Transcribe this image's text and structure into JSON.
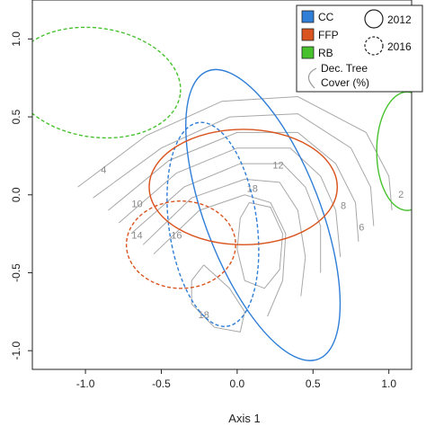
{
  "chart_data": {
    "type": "scatter",
    "title": "",
    "xlabel": "Axis 1",
    "ylabel": "",
    "xlim": [
      -1.35,
      1.15
    ],
    "ylim": [
      -1.12,
      1.25
    ],
    "x_ticks": [
      -1.0,
      -0.5,
      0.0,
      0.5,
      1.0
    ],
    "x_tick_labels": [
      "-1.0",
      "-0.5",
      "0.0",
      "0.5",
      "1.0"
    ],
    "y_ticks": [
      -1.0,
      -0.5,
      0.0,
      0.5,
      1.0
    ],
    "y_tick_labels": [
      "-1.0",
      "-0.5",
      "0.0",
      "0.5",
      "1.0"
    ],
    "grid": false,
    "legend": {
      "placement": "top-right",
      "groups": [
        {
          "label": "CC",
          "color": "#2f7ed8"
        },
        {
          "label": "FFP",
          "color": "#d9541e"
        },
        {
          "label": "RB",
          "color": "#47c22e"
        }
      ],
      "years": [
        {
          "label": "2012",
          "style": "solid"
        },
        {
          "label": "2016",
          "style": "dashed"
        }
      ],
      "contour_line1": "Dec. Tree",
      "contour_line2": "Cover (%)"
    },
    "ellipses": [
      {
        "group": "CC",
        "year": "2012",
        "color": "#2f7ed8",
        "style": "solid",
        "cx": 0.17,
        "cy": -0.13,
        "rx": 0.38,
        "ry": 0.99,
        "angle_deg": -21
      },
      {
        "group": "CC",
        "year": "2016",
        "color": "#2f7ed8",
        "style": "dashed",
        "cx": -0.16,
        "cy": -0.19,
        "rx": 0.29,
        "ry": 0.66,
        "angle_deg": -8
      },
      {
        "group": "FFP",
        "year": "2012",
        "color": "#d9541e",
        "style": "solid",
        "cx": 0.04,
        "cy": 0.05,
        "rx": 0.62,
        "ry": 0.37,
        "angle_deg": 0
      },
      {
        "group": "FFP",
        "year": "2016",
        "color": "#d9541e",
        "style": "dashed",
        "cx": -0.37,
        "cy": -0.32,
        "rx": 0.36,
        "ry": 0.28,
        "angle_deg": 0
      },
      {
        "group": "RB",
        "year": "2012",
        "color": "#47c22e",
        "style": "solid",
        "cx": 1.12,
        "cy": 0.28,
        "rx": 0.2,
        "ry": 0.38,
        "angle_deg": 0
      },
      {
        "group": "RB",
        "year": "2016",
        "color": "#47c22e",
        "style": "dashed",
        "cx": -0.93,
        "cy": 0.72,
        "rx": 0.56,
        "ry": 0.35,
        "angle_deg": 8
      }
    ],
    "contours": {
      "color": "#a8a8a8",
      "lines": [
        [
          [
            -1.05,
            0.05
          ],
          [
            -0.6,
            0.38
          ],
          [
            -0.1,
            0.6
          ],
          [
            0.4,
            0.63
          ],
          [
            0.85,
            0.4
          ],
          [
            1.0,
            0.12
          ],
          [
            1.02,
            -0.1
          ]
        ],
        [
          [
            -0.95,
            -0.02
          ],
          [
            -0.5,
            0.3
          ],
          [
            -0.05,
            0.5
          ],
          [
            0.4,
            0.52
          ],
          [
            0.75,
            0.3
          ],
          [
            0.88,
            0.05
          ],
          [
            0.9,
            -0.2
          ]
        ],
        [
          [
            -0.85,
            -0.1
          ],
          [
            -0.45,
            0.22
          ],
          [
            0.0,
            0.4
          ],
          [
            0.4,
            0.4
          ],
          [
            0.65,
            0.2
          ],
          [
            0.78,
            -0.05
          ],
          [
            0.8,
            -0.3
          ]
        ],
        [
          [
            -0.78,
            -0.18
          ],
          [
            -0.4,
            0.14
          ],
          [
            0.0,
            0.3
          ],
          [
            0.35,
            0.3
          ],
          [
            0.55,
            0.12
          ],
          [
            0.65,
            -0.1
          ],
          [
            0.68,
            -0.4
          ]
        ],
        [
          [
            -0.7,
            -0.25
          ],
          [
            -0.35,
            0.05
          ],
          [
            0.02,
            0.2
          ],
          [
            0.3,
            0.2
          ],
          [
            0.45,
            0.05
          ],
          [
            0.55,
            -0.2
          ],
          [
            0.55,
            -0.5
          ]
        ],
        [
          [
            -0.62,
            -0.32
          ],
          [
            -0.3,
            -0.02
          ],
          [
            0.05,
            0.1
          ],
          [
            0.28,
            0.08
          ],
          [
            0.4,
            -0.1
          ],
          [
            0.45,
            -0.4
          ],
          [
            0.42,
            -0.65
          ]
        ],
        [
          [
            -0.55,
            -0.38
          ],
          [
            -0.25,
            -0.1
          ],
          [
            0.05,
            0.0
          ],
          [
            0.22,
            -0.05
          ],
          [
            0.32,
            -0.25
          ],
          [
            0.3,
            -0.55
          ],
          [
            0.2,
            -0.78
          ]
        ],
        [
          [
            0.08,
            -0.05
          ],
          [
            0.22,
            -0.08
          ],
          [
            0.3,
            -0.25
          ],
          [
            0.28,
            -0.48
          ],
          [
            0.18,
            -0.6
          ],
          [
            0.05,
            -0.55
          ],
          [
            0.0,
            -0.35
          ],
          [
            0.02,
            -0.15
          ],
          [
            0.08,
            -0.05
          ]
        ],
        [
          [
            -0.22,
            -0.45
          ],
          [
            -0.05,
            -0.6
          ],
          [
            0.05,
            -0.75
          ],
          [
            0.02,
            -0.88
          ],
          [
            -0.15,
            -0.85
          ],
          [
            -0.3,
            -0.7
          ],
          [
            -0.3,
            -0.55
          ],
          [
            -0.22,
            -0.45
          ]
        ]
      ],
      "labels": [
        {
          "text": "2",
          "x": 1.08,
          "y": -0.02
        },
        {
          "text": "4",
          "x": -0.88,
          "y": 0.14
        },
        {
          "text": "6",
          "x": 0.82,
          "y": -0.23
        },
        {
          "text": "8",
          "x": 0.7,
          "y": -0.09
        },
        {
          "text": "10",
          "x": -0.66,
          "y": -0.08
        },
        {
          "text": "12",
          "x": 0.27,
          "y": 0.17
        },
        {
          "text": "14",
          "x": -0.66,
          "y": -0.28
        },
        {
          "text": "16",
          "x": -0.4,
          "y": -0.28
        },
        {
          "text": "18",
          "x": 0.1,
          "y": 0.02
        },
        {
          "text": "18",
          "x": -0.22,
          "y": -0.79
        }
      ]
    }
  }
}
